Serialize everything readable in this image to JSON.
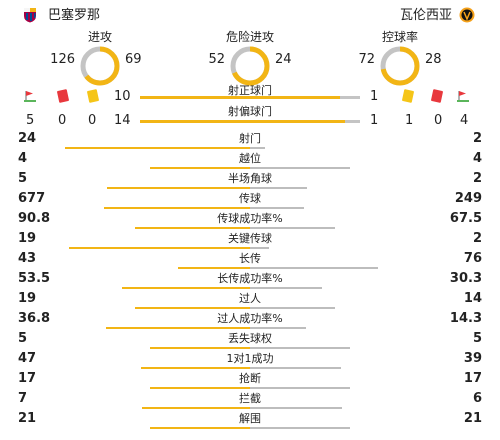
{
  "header": {
    "home_team": "巴塞罗那",
    "away_team": "瓦伦西亚"
  },
  "colors": {
    "home": "#f2b515",
    "away": "#c4c4c4",
    "red_card": "#e8383d",
    "yellow_card": "#f5c518"
  },
  "donuts": [
    {
      "title": "进攻",
      "home": 126,
      "away": 69
    },
    {
      "title": "危险进攻",
      "home": 52,
      "away": 24
    },
    {
      "title": "控球率",
      "home": 72,
      "away": 28
    }
  ],
  "shots_on": {
    "label": "射正球门",
    "home": 10,
    "away": 1
  },
  "shots_off": {
    "label": "射偏球门",
    "home": 14,
    "away": 1
  },
  "home_events": {
    "corners": 5,
    "red": 0,
    "yellow": 0
  },
  "away_events": {
    "yellow": 1,
    "red": 0,
    "corners": 4
  },
  "stats": [
    {
      "label": "射门",
      "home": "24",
      "away": "2"
    },
    {
      "label": "越位",
      "home": "4",
      "away": "4"
    },
    {
      "label": "半场角球",
      "home": "5",
      "away": "2"
    },
    {
      "label": "传球",
      "home": "677",
      "away": "249"
    },
    {
      "label": "传球成功率%",
      "home": "90.8",
      "away": "67.5"
    },
    {
      "label": "关键传球",
      "home": "19",
      "away": "2"
    },
    {
      "label": "长传",
      "home": "43",
      "away": "76"
    },
    {
      "label": "长传成功率%",
      "home": "53.5",
      "away": "30.3"
    },
    {
      "label": "过人",
      "home": "19",
      "away": "14"
    },
    {
      "label": "过人成功率%",
      "home": "36.8",
      "away": "14.3"
    },
    {
      "label": "丢失球权",
      "home": "5",
      "away": "5"
    },
    {
      "label": "1对1成功",
      "home": "47",
      "away": "39"
    },
    {
      "label": "抢断",
      "home": "17",
      "away": "17"
    },
    {
      "label": "拦截",
      "home": "7",
      "away": "6"
    },
    {
      "label": "解围",
      "home": "21",
      "away": "21"
    }
  ]
}
